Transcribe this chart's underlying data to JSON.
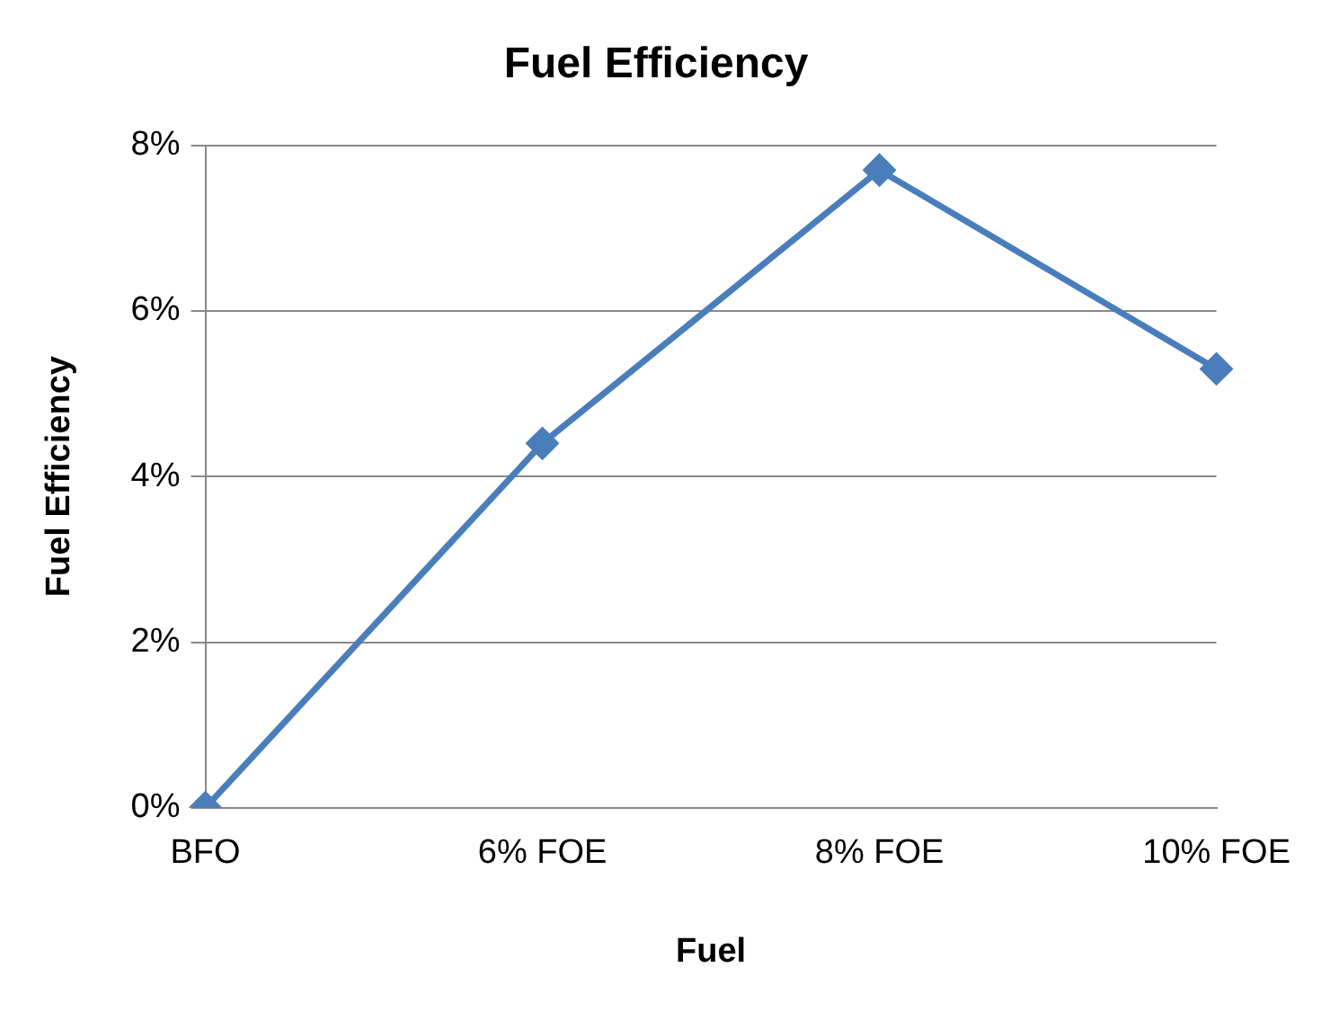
{
  "chart_data": {
    "type": "line",
    "title": "Fuel Efficiency",
    "xlabel": "Fuel",
    "ylabel": "Fuel Efficiency",
    "categories": [
      "BFO",
      "6% FOE",
      "8% FOE",
      "10% FOE"
    ],
    "series": [
      {
        "color": "#4a7ebb",
        "values": [
          0,
          4.4,
          7.7,
          5.3
        ]
      }
    ],
    "ylim": [
      0,
      8
    ],
    "yticks": [
      {
        "value": 0,
        "label": "0%"
      },
      {
        "value": 2,
        "label": "2%"
      },
      {
        "value": 4,
        "label": "4%"
      },
      {
        "value": 6,
        "label": "6%"
      },
      {
        "value": 8,
        "label": "8%"
      }
    ],
    "grid": "y",
    "legend": false,
    "marker": "diamond",
    "line_style": "solid"
  }
}
